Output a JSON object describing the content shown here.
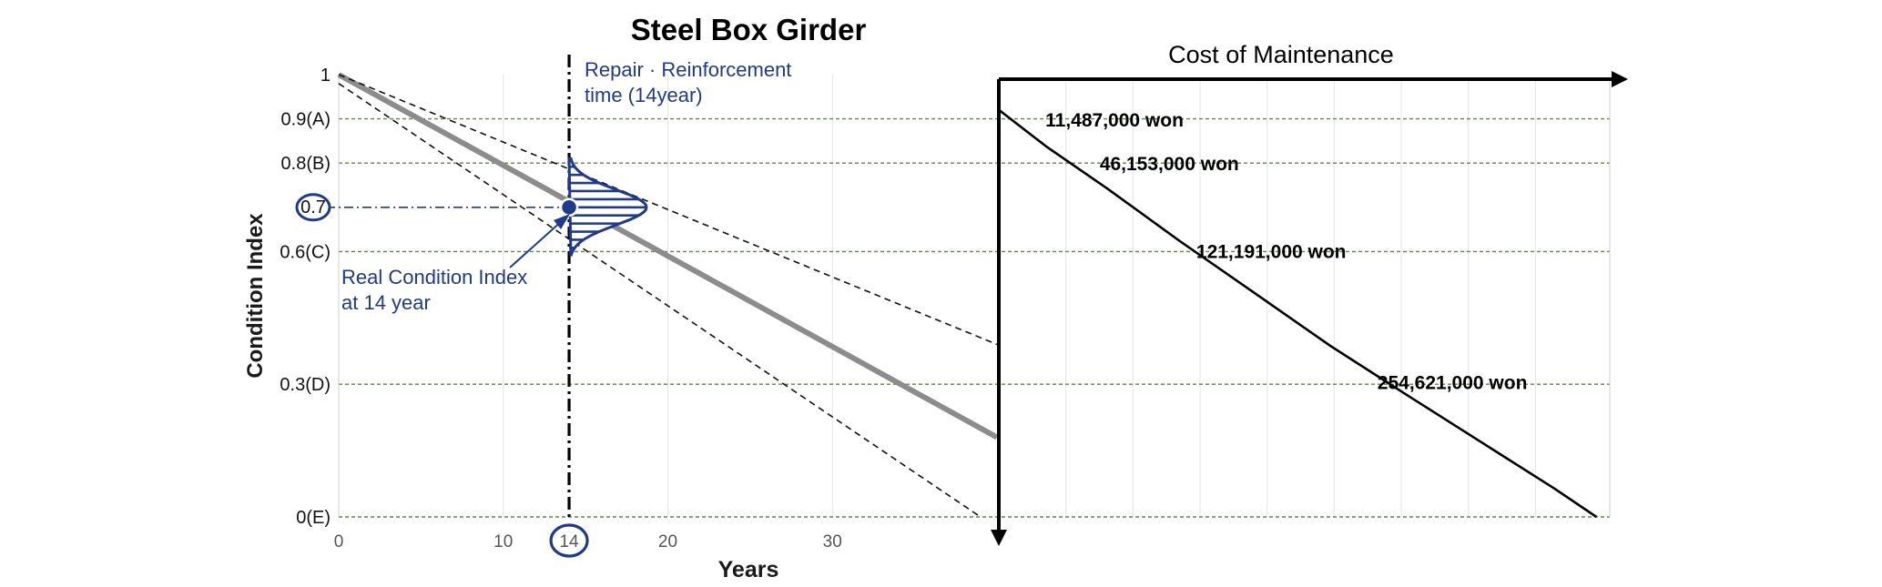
{
  "chart_data": [
    {
      "type": "line",
      "title": "Steel Box Girder",
      "xlabel": "Years",
      "ylabel": "Condition Index",
      "xlim": [
        0,
        40
      ],
      "ylim": [
        0,
        1
      ],
      "x_ticks": [
        {
          "value": 0,
          "label": "0"
        },
        {
          "value": 10,
          "label": "10"
        },
        {
          "value": 14,
          "label": "14"
        },
        {
          "value": 20,
          "label": "20"
        },
        {
          "value": 30,
          "label": "30"
        }
      ],
      "y_ticks": [
        {
          "value": 1.0,
          "label": "1"
        },
        {
          "value": 0.9,
          "label": "0.9(A)"
        },
        {
          "value": 0.8,
          "label": "0.8(B)"
        },
        {
          "value": 0.7,
          "label": "0.7"
        },
        {
          "value": 0.6,
          "label": "0.6(C)"
        },
        {
          "value": 0.3,
          "label": "0.3(D)"
        },
        {
          "value": 0.0,
          "label": "0(E)"
        }
      ],
      "grade_lines": [
        0.9,
        0.8,
        0.6,
        0.3,
        0.0
      ],
      "series": [
        {
          "style": "mean",
          "color": "#8c8c8c",
          "x": [
            0,
            40
          ],
          "y": [
            1.0,
            0.18
          ]
        },
        {
          "style": "upper-bound",
          "color": "#111111",
          "x": [
            0,
            40
          ],
          "y": [
            1.0,
            0.39
          ]
        },
        {
          "style": "lower-bound",
          "color": "#111111",
          "x": [
            0,
            39
          ],
          "y": [
            0.98,
            0.0
          ]
        }
      ],
      "repair_time": 14,
      "real_condition_index": 0.7,
      "distribution_at_repair": {
        "x": 14,
        "mean": 0.7,
        "min": 0.59,
        "max": 0.81
      },
      "annotations": [
        {
          "lines": [
            "Repair · Reinforcement",
            "time (14year)"
          ]
        },
        {
          "lines": [
            "Real Condition Index",
            "at 14 year"
          ]
        }
      ],
      "grid": true
    },
    {
      "type": "line",
      "title": "Cost of Maintenance",
      "xlim": [
        0,
        1
      ],
      "ylim": [
        0,
        1
      ],
      "series": [
        {
          "color": "#000000",
          "x": [
            0.0,
            0.08,
            0.18,
            0.3,
            0.42,
            0.55,
            0.68,
            0.8,
            0.92,
            0.99
          ],
          "y": [
            0.93,
            0.845,
            0.75,
            0.63,
            0.515,
            0.39,
            0.275,
            0.17,
            0.065,
            0.0
          ]
        }
      ],
      "data_labels": [
        {
          "text": "11,487,000 won",
          "x": 0.05,
          "y": 0.9
        },
        {
          "text": "46,153,000 won",
          "x": 0.14,
          "y": 0.8
        },
        {
          "text": "121,191,000 won",
          "x": 0.3,
          "y": 0.6
        },
        {
          "text": "254,621,000 won",
          "x": 0.6,
          "y": 0.3
        }
      ],
      "grade_lines": [
        0.9,
        0.8,
        0.6,
        0.3,
        0.0
      ],
      "grid": true
    }
  ]
}
